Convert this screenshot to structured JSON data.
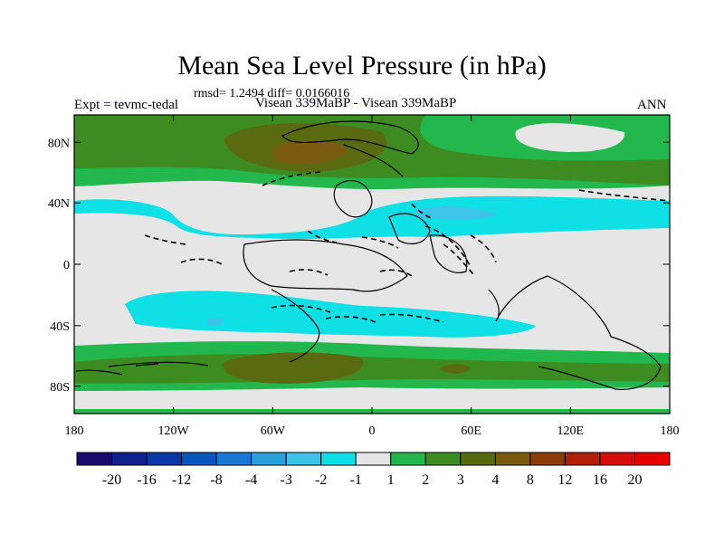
{
  "chart_data": {
    "type": "contour-map",
    "title": "Mean Sea Level Pressure (in hPa)",
    "stats_line": "rmsd= 1.2494 diff= 0.0166016",
    "left_label": "Expt = tevmc-tedal",
    "center_label": "Visean 339MaBP - Visean 339MaBP",
    "right_label": "ANN",
    "x_ticks": [
      "180",
      "120W",
      "60W",
      "0",
      "60E",
      "120E",
      "180"
    ],
    "y_ticks": [
      "80N",
      "40N",
      "0",
      "40S",
      "80S"
    ],
    "lon_range": [
      -180,
      180
    ],
    "lat_range": [
      -90,
      90
    ],
    "colorbar": {
      "labels": [
        "-20",
        "-16",
        "-12",
        "-8",
        "-4",
        "-3",
        "-2",
        "-1",
        "1",
        "2",
        "3",
        "4",
        "8",
        "12",
        "16",
        "20"
      ],
      "colors": [
        "#1a0a6e",
        "#10208c",
        "#0a38a8",
        "#0a55c0",
        "#1a78d2",
        "#2aa0dc",
        "#3ec4e6",
        "#0fe0e6",
        "#e6e6e6",
        "#22b84e",
        "#3c8c22",
        "#5a6a10",
        "#7a5a10",
        "#8a3c0a",
        "#b21e0a",
        "#d80c0c",
        "#e60000"
      ]
    }
  }
}
